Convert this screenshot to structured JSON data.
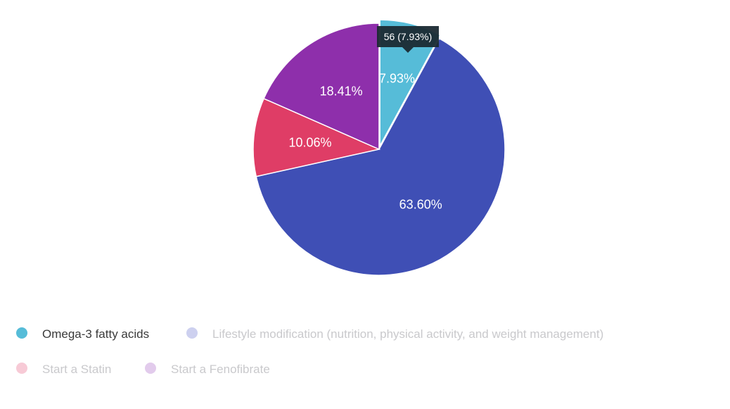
{
  "chart_data": {
    "type": "pie",
    "slices": [
      {
        "name": "Omega-3 fatty acids",
        "value": 56,
        "percent": "7.93%",
        "color": "#56bcd8",
        "highlighted": true
      },
      {
        "name": "Lifestyle modification (nutrition, physical activity, and weight management)",
        "value": 449,
        "percent": "63.60%",
        "color": "#3f4fb5",
        "highlighted": false
      },
      {
        "name": "Start a Statin",
        "value": 71,
        "percent": "10.06%",
        "color": "#df3d66",
        "highlighted": false
      },
      {
        "name": "Start a Fenofibrate",
        "value": 130,
        "percent": "18.41%",
        "color": "#8e2fab",
        "highlighted": false
      }
    ],
    "tooltip": {
      "text": "56 (7.93%)"
    },
    "legend": {
      "placement": "bottom-left",
      "items": [
        {
          "label": "Omega-3 fatty acids",
          "active": true,
          "color": "#56bcd8"
        },
        {
          "label": "Lifestyle modification (nutrition, physical activity, and weight management)",
          "active": false,
          "color": "#cdd0ef"
        },
        {
          "label": "Start a Statin",
          "active": false,
          "color": "#f7cad6"
        },
        {
          "label": "Start a Fenofibrate",
          "active": false,
          "color": "#e2cbec"
        }
      ]
    }
  }
}
